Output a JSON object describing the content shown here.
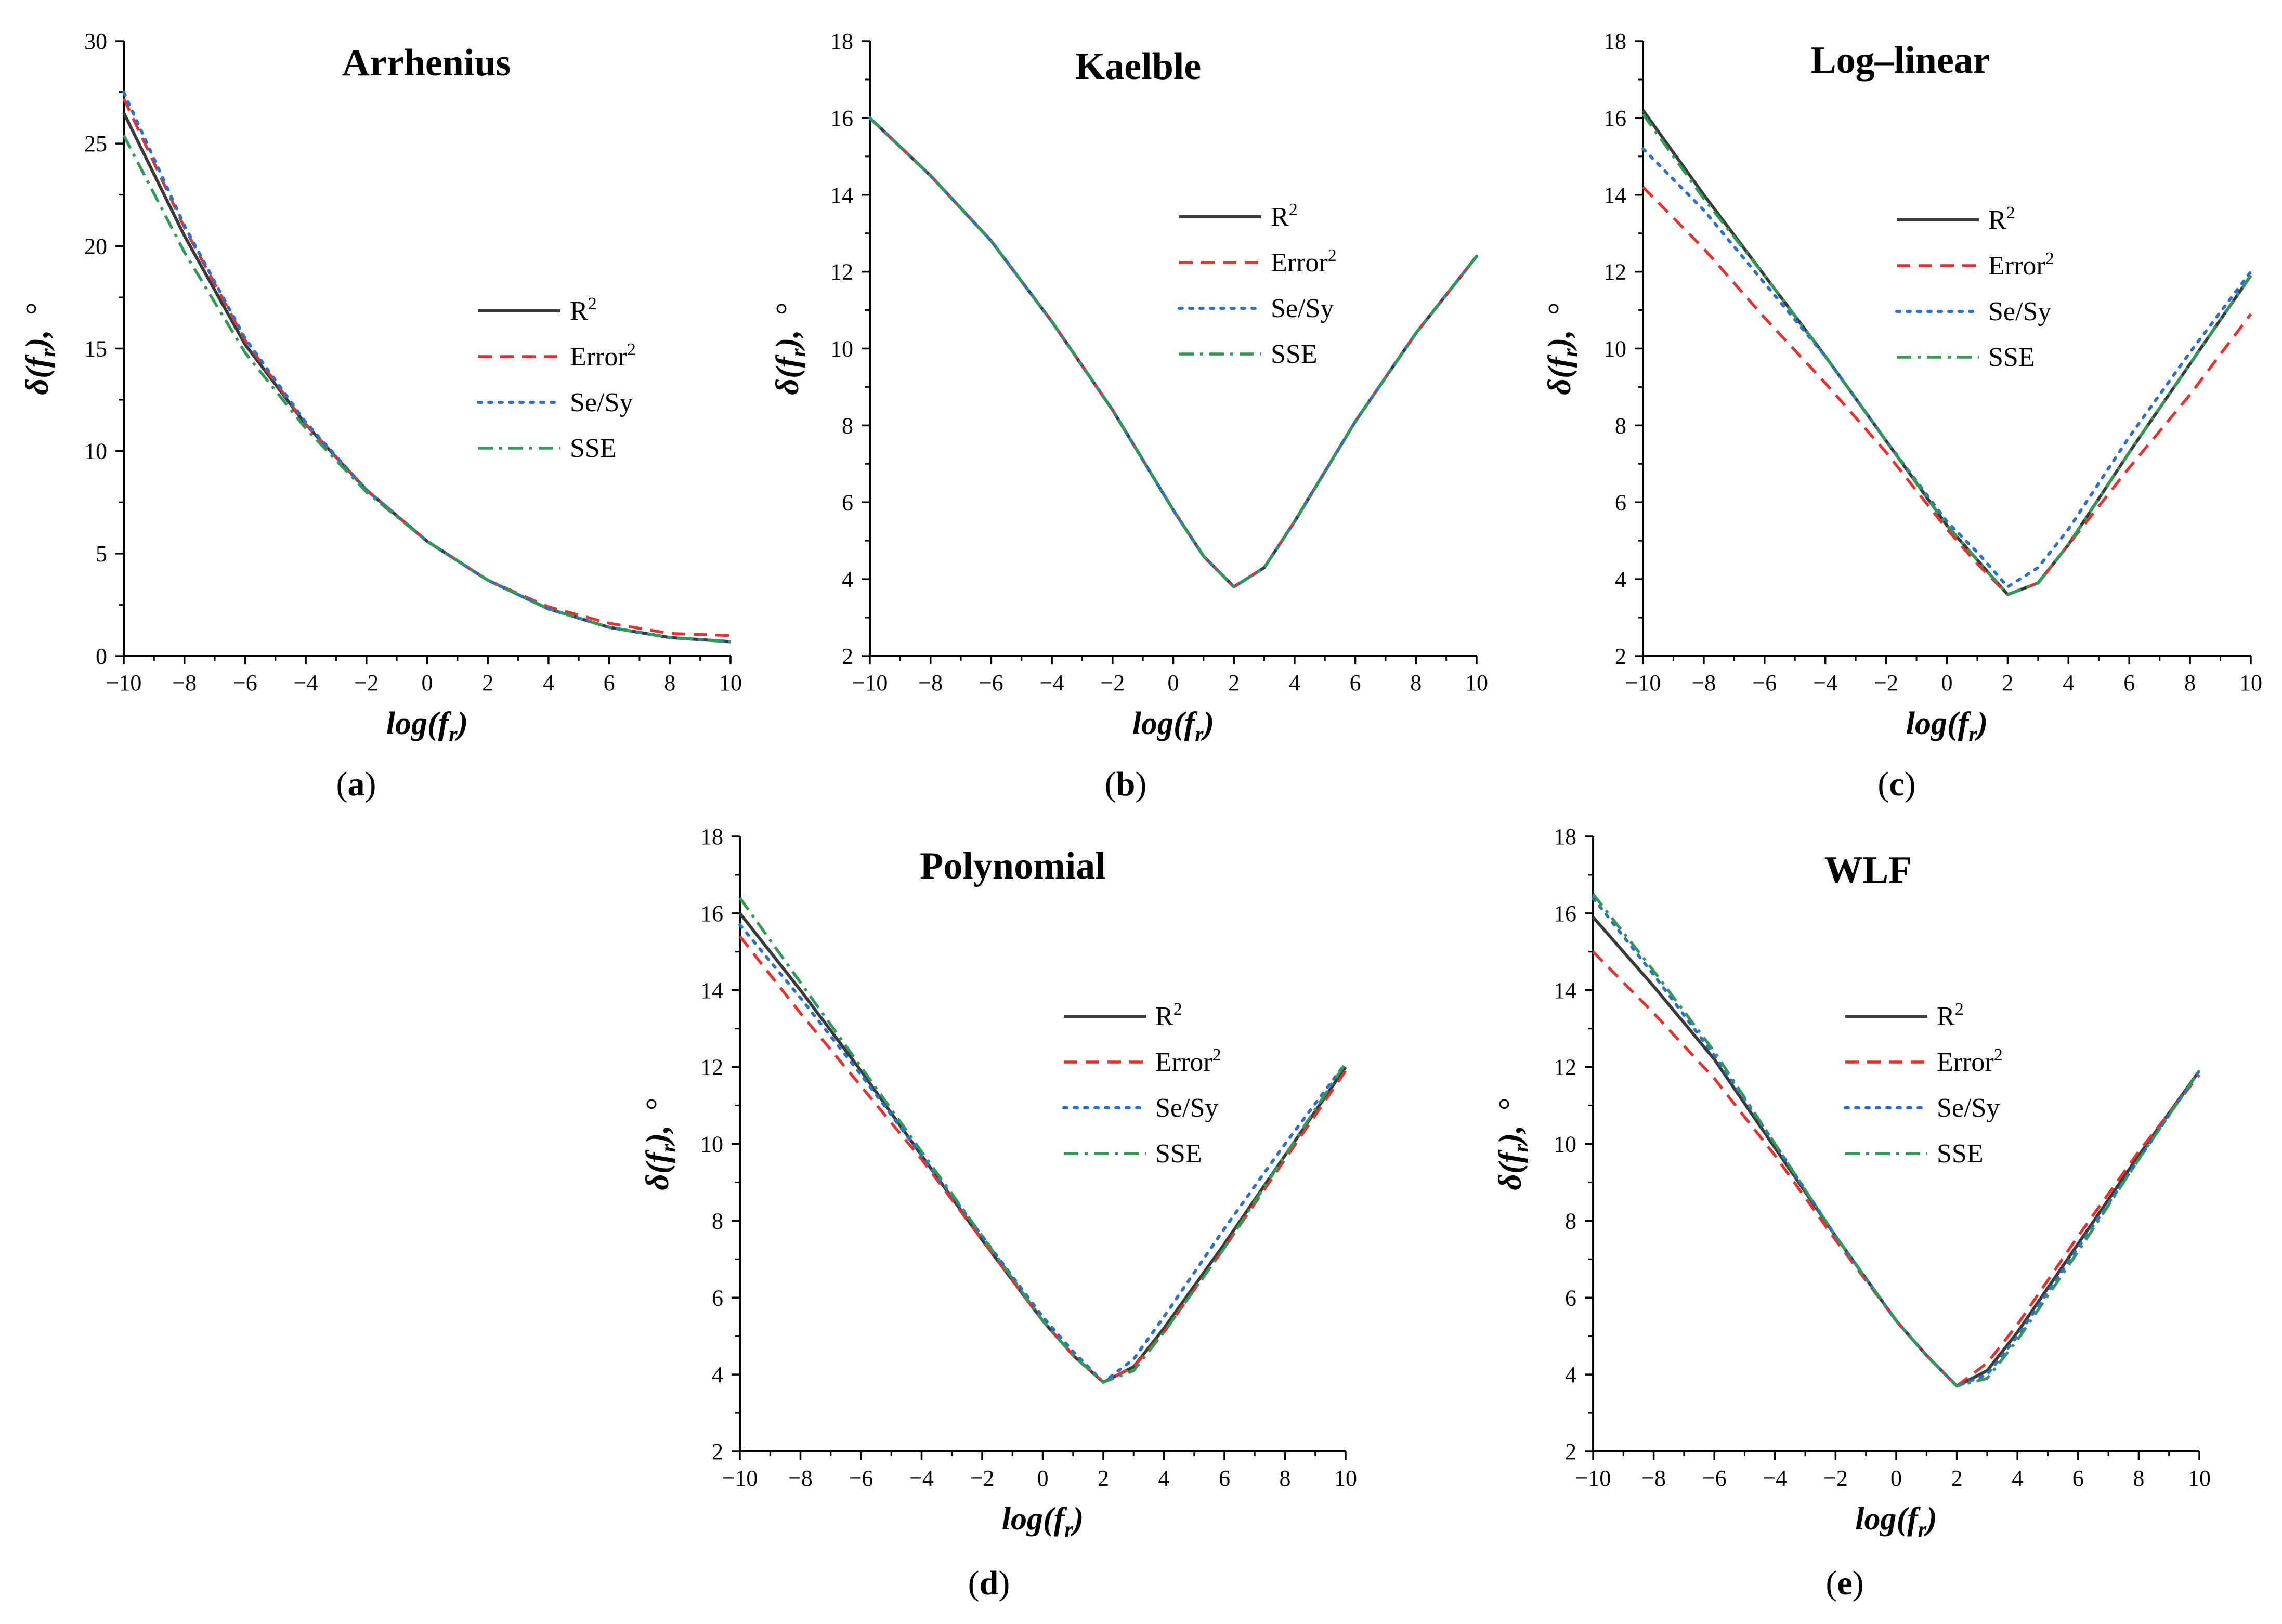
{
  "figure": {
    "panels": [
      {
        "id": "a",
        "title": "Arrhenius",
        "letter": "a",
        "legend": {
          "line1": "R",
          "line1_sup": "2",
          "line2": "Error",
          "line2_sup": "2",
          "line3": "Se/Sy",
          "line4": "SSE"
        },
        "x_label": "log(f",
        "x_label_sub": "r",
        "x_label_close": ")",
        "y_label": "δ(f",
        "y_label_sub": "r",
        "y_label_close": "),",
        "y_unit": "°",
        "x_ticks": [
          "−10",
          "−8",
          "−6",
          "−4",
          "−2",
          "0",
          "2",
          "4",
          "6",
          "8",
          "10"
        ],
        "y_ticks": [
          "0",
          "5",
          "10",
          "15",
          "20",
          "25",
          "30"
        ]
      },
      {
        "id": "b",
        "title": "Kaelble",
        "letter": "b",
        "legend": {
          "line1": "R",
          "line1_sup": "2",
          "line2": "Error",
          "line2_sup": "2",
          "line3": "Se/Sy",
          "line4": "SSE"
        },
        "x_label": "log(f",
        "x_label_sub": "r",
        "x_label_close": ")",
        "y_label": "δ(f",
        "y_label_sub": "r",
        "y_label_close": "),",
        "y_unit": "°",
        "x_ticks": [
          "−10",
          "−8",
          "−6",
          "−4",
          "−2",
          "0",
          "2",
          "4",
          "6",
          "8",
          "10"
        ],
        "y_ticks": [
          "2",
          "4",
          "6",
          "8",
          "10",
          "12",
          "14",
          "16",
          "18"
        ]
      },
      {
        "id": "c",
        "title": "Log–linear",
        "letter": "c",
        "legend": {
          "line1": "R",
          "line1_sup": "2",
          "line2": "Error",
          "line2_sup": "2",
          "line3": "Se/Sy",
          "line4": "SSE"
        },
        "x_label": "log(f",
        "x_label_sub": "r",
        "x_label_close": ")",
        "y_label": "δ(f",
        "y_label_sub": "r",
        "y_label_close": "),",
        "y_unit": "°",
        "x_ticks": [
          "−10",
          "−8",
          "−6",
          "−4",
          "−2",
          "0",
          "2",
          "4",
          "6",
          "8",
          "10"
        ],
        "y_ticks": [
          "2",
          "4",
          "6",
          "8",
          "10",
          "12",
          "14",
          "16",
          "18"
        ]
      },
      {
        "id": "d",
        "title": "Polynomial",
        "letter": "d",
        "legend": {
          "line1": "R",
          "line1_sup": "2",
          "line2": "Error",
          "line2_sup": "2",
          "line3": "Se/Sy",
          "line4": "SSE"
        },
        "x_label": "log(f",
        "x_label_sub": "r",
        "x_label_close": ")",
        "y_label": "δ(f",
        "y_label_sub": "r",
        "y_label_close": "),",
        "y_unit": "°",
        "x_ticks": [
          "−10",
          "−8",
          "−6",
          "−4",
          "−2",
          "0",
          "2",
          "4",
          "6",
          "8",
          "10"
        ],
        "y_ticks": [
          "2",
          "4",
          "6",
          "8",
          "10",
          "12",
          "14",
          "16",
          "18"
        ]
      },
      {
        "id": "e",
        "title": "WLF",
        "letter": "e",
        "legend": {
          "line1": "R",
          "line1_sup": "2",
          "line2": "Error",
          "line2_sup": "2",
          "line3": "Se/Sy",
          "line4": "SSE"
        },
        "x_label": "log(f",
        "x_label_sub": "r",
        "x_label_close": ")",
        "y_label": "δ(f",
        "y_label_sub": "r",
        "y_label_close": "),",
        "y_unit": "°",
        "x_ticks": [
          "−10",
          "−8",
          "−6",
          "−4",
          "−2",
          "0",
          "2",
          "4",
          "6",
          "8",
          "10"
        ],
        "y_ticks": [
          "2",
          "4",
          "6",
          "8",
          "10",
          "12",
          "14",
          "16",
          "18"
        ]
      }
    ]
  },
  "colors": {
    "R2": "#3a3a3a",
    "Error2": "#e8312f",
    "SeSy": "#2b6fd0",
    "SSE": "#2f9a57",
    "axis": "#000000"
  },
  "chart_data": [
    {
      "type": "line",
      "title": "Arrhenius",
      "xlabel": "log(f_r)",
      "ylabel": "δ(f_r), °",
      "xlim": [
        -10,
        10
      ],
      "ylim": [
        0,
        30
      ],
      "x": [
        -10,
        -8,
        -6,
        -4,
        -2,
        0,
        2,
        4,
        6,
        8,
        10
      ],
      "series": [
        {
          "name": "R2",
          "values": [
            26.5,
            20.5,
            15.2,
            11.3,
            8.1,
            5.6,
            3.7,
            2.3,
            1.4,
            0.9,
            0.7
          ]
        },
        {
          "name": "Error2",
          "values": [
            27.2,
            20.9,
            15.4,
            11.3,
            8.1,
            5.6,
            3.7,
            2.4,
            1.6,
            1.1,
            1.0
          ]
        },
        {
          "name": "Se/Sy",
          "values": [
            27.5,
            21.0,
            15.5,
            11.4,
            8.1,
            5.6,
            3.7,
            2.3,
            1.4,
            0.9,
            0.7
          ]
        },
        {
          "name": "SSE",
          "values": [
            25.4,
            19.7,
            14.8,
            11.1,
            8.0,
            5.6,
            3.7,
            2.3,
            1.4,
            0.9,
            0.7
          ]
        }
      ]
    },
    {
      "type": "line",
      "title": "Kaelble",
      "xlabel": "log(f_r)",
      "ylabel": "δ(f_r), °",
      "xlim": [
        -10,
        10
      ],
      "ylim": [
        2,
        18
      ],
      "x": [
        -10,
        -8,
        -6,
        -4,
        -2,
        0,
        1,
        2,
        3,
        4,
        6,
        8,
        10
      ],
      "series": [
        {
          "name": "R2",
          "values": [
            16.0,
            14.5,
            12.8,
            10.7,
            8.4,
            5.8,
            4.6,
            3.8,
            4.3,
            5.5,
            8.1,
            10.4,
            12.4
          ]
        },
        {
          "name": "Error2",
          "values": [
            16.0,
            14.5,
            12.8,
            10.7,
            8.4,
            5.8,
            4.6,
            3.8,
            4.3,
            5.5,
            8.1,
            10.4,
            12.4
          ]
        },
        {
          "name": "Se/Sy",
          "values": [
            16.0,
            14.5,
            12.8,
            10.7,
            8.4,
            5.8,
            4.6,
            3.8,
            4.3,
            5.5,
            8.1,
            10.4,
            12.4
          ]
        },
        {
          "name": "SSE",
          "values": [
            16.0,
            14.5,
            12.8,
            10.7,
            8.4,
            5.8,
            4.6,
            3.8,
            4.3,
            5.5,
            8.1,
            10.4,
            12.4
          ]
        }
      ]
    },
    {
      "type": "line",
      "title": "Log–linear",
      "xlabel": "log(f_r)",
      "ylabel": "δ(f_r), °",
      "xlim": [
        -10,
        10
      ],
      "ylim": [
        2,
        18
      ],
      "x": [
        -10,
        -8,
        -6,
        -4,
        -2,
        0,
        1,
        2,
        3,
        4,
        6,
        8,
        10
      ],
      "series": [
        {
          "name": "R2",
          "values": [
            16.2,
            14.0,
            11.9,
            9.8,
            7.6,
            5.4,
            4.5,
            3.6,
            3.9,
            4.9,
            7.3,
            9.6,
            11.9
          ]
        },
        {
          "name": "Error2",
          "values": [
            14.2,
            12.6,
            10.8,
            9.1,
            7.3,
            5.3,
            4.4,
            3.6,
            3.9,
            4.9,
            6.9,
            8.8,
            10.9
          ]
        },
        {
          "name": "Se/Sy",
          "values": [
            15.2,
            13.6,
            11.7,
            9.8,
            7.6,
            5.5,
            4.7,
            3.8,
            4.3,
            5.3,
            7.7,
            9.9,
            12.0
          ]
        },
        {
          "name": "SSE",
          "values": [
            16.1,
            13.9,
            11.9,
            9.8,
            7.6,
            5.4,
            4.5,
            3.6,
            3.9,
            4.9,
            7.3,
            9.6,
            11.9
          ]
        }
      ]
    },
    {
      "type": "line",
      "title": "Polynomial",
      "xlabel": "log(f_r)",
      "ylabel": "δ(f_r), °",
      "xlim": [
        -10,
        10
      ],
      "ylim": [
        2,
        18
      ],
      "x": [
        -10,
        -8,
        -6,
        -4,
        -2,
        0,
        1,
        2,
        3,
        4,
        6,
        8,
        10
      ],
      "series": [
        {
          "name": "R2",
          "values": [
            16.0,
            14.0,
            11.9,
            9.7,
            7.5,
            5.4,
            4.5,
            3.8,
            4.2,
            5.2,
            7.4,
            9.7,
            12.0
          ]
        },
        {
          "name": "Error2",
          "values": [
            15.4,
            13.4,
            11.5,
            9.6,
            7.5,
            5.4,
            4.5,
            3.8,
            4.2,
            5.1,
            7.3,
            9.6,
            11.9
          ]
        },
        {
          "name": "Se/Sy",
          "values": [
            15.7,
            13.8,
            11.8,
            9.7,
            7.6,
            5.5,
            4.6,
            3.8,
            4.4,
            5.5,
            7.8,
            10.0,
            12.1
          ]
        },
        {
          "name": "SSE",
          "values": [
            16.4,
            14.2,
            12.0,
            9.8,
            7.6,
            5.4,
            4.5,
            3.8,
            4.1,
            5.1,
            7.3,
            9.7,
            12.1
          ]
        }
      ]
    },
    {
      "type": "line",
      "title": "WLF",
      "xlabel": "log(f_r)",
      "ylabel": "δ(f_r), °",
      "xlim": [
        -10,
        10
      ],
      "ylim": [
        2,
        18
      ],
      "x": [
        -10,
        -8,
        -6,
        -4,
        -2,
        0,
        1,
        2,
        3,
        4,
        6,
        8,
        10
      ],
      "series": [
        {
          "name": "R2",
          "values": [
            15.9,
            14.1,
            12.2,
            9.9,
            7.6,
            5.4,
            4.5,
            3.7,
            4.1,
            5.1,
            7.4,
            9.7,
            11.9
          ]
        },
        {
          "name": "Error2",
          "values": [
            15.0,
            13.4,
            11.7,
            9.7,
            7.5,
            5.4,
            4.5,
            3.7,
            4.3,
            5.3,
            7.6,
            9.8,
            11.8
          ]
        },
        {
          "name": "Se/Sy",
          "values": [
            16.4,
            14.4,
            12.3,
            10.0,
            7.6,
            5.4,
            4.5,
            3.7,
            4.0,
            5.0,
            7.3,
            9.6,
            11.9
          ]
        },
        {
          "name": "SSE",
          "values": [
            16.5,
            14.5,
            12.4,
            10.0,
            7.6,
            5.4,
            4.5,
            3.7,
            3.9,
            4.9,
            7.2,
            9.6,
            11.9
          ]
        }
      ]
    }
  ]
}
